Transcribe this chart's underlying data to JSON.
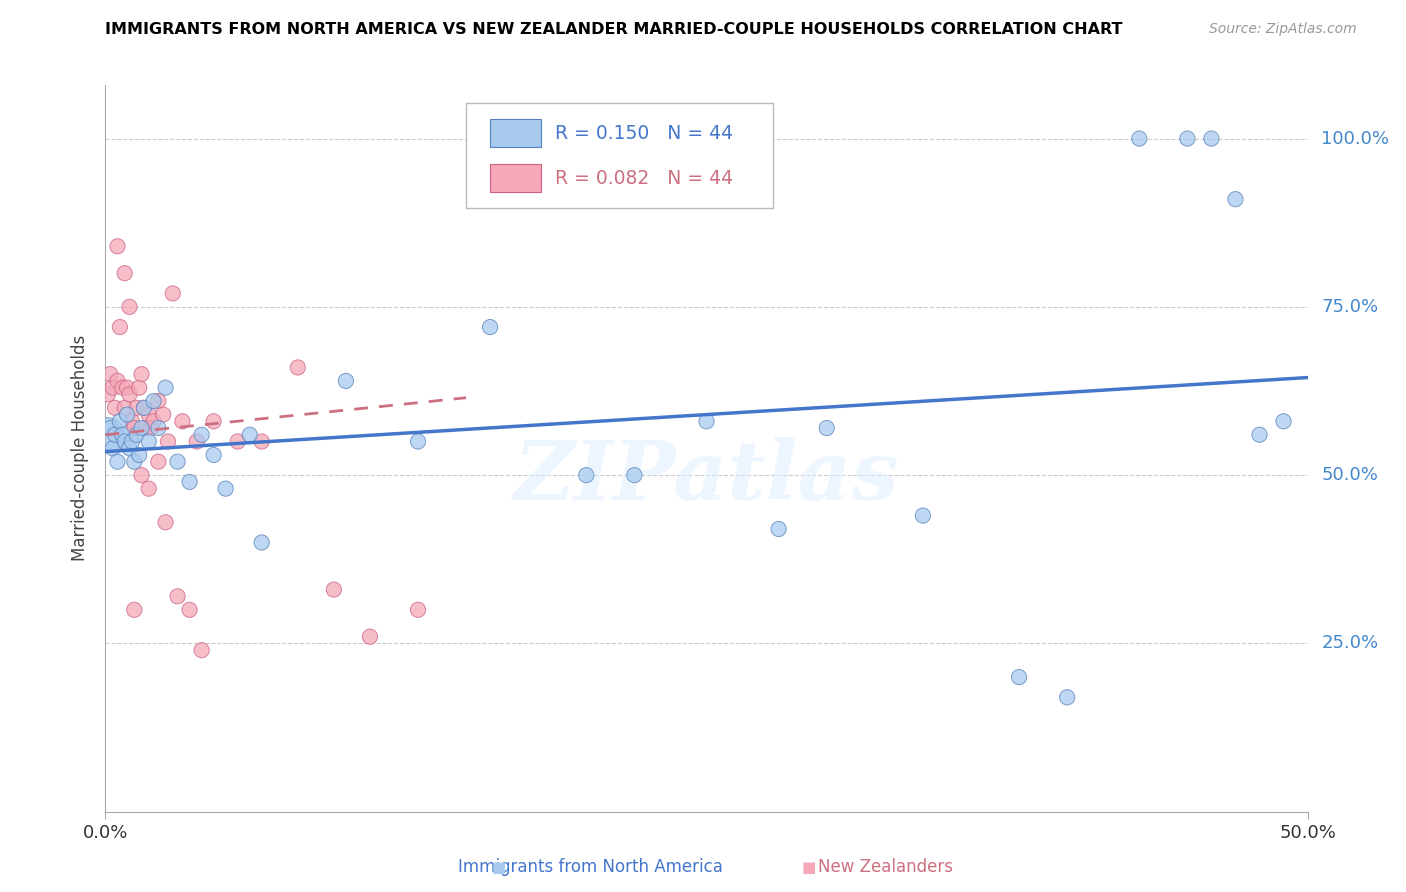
{
  "title": "IMMIGRANTS FROM NORTH AMERICA VS NEW ZEALANDER MARRIED-COUPLE HOUSEHOLDS CORRELATION CHART",
  "source": "Source: ZipAtlas.com",
  "xlabel_blue": "Immigrants from North America",
  "xlabel_pink": "New Zealanders",
  "ylabel": "Married-couple Households",
  "watermark": "ZIPatlas",
  "legend_blue_R": "0.150",
  "legend_blue_N": "44",
  "legend_pink_R": "0.082",
  "legend_pink_N": "44",
  "blue_fill": "#A8CAEE",
  "blue_edge": "#5580BB",
  "pink_fill": "#F4A8B8",
  "pink_edge": "#CC6080",
  "blue_line": "#4477CC",
  "pink_line": "#CC7080",
  "right_label_color": "#4488CC",
  "grid_color": "#cccccc",
  "xlim": [
    0.0,
    0.5
  ],
  "ylim": [
    0.0,
    1.08
  ],
  "ytick_vals": [
    0.25,
    0.5,
    0.75,
    1.0
  ],
  "ytick_labels": [
    "25.0%",
    "50.0%",
    "75.0%",
    "100.0%"
  ],
  "xtick_vals": [
    0.0,
    0.5
  ],
  "xtick_labels": [
    "0.0%",
    "50.0%"
  ],
  "blue_x": [
    0.001,
    0.002,
    0.003,
    0.004,
    0.005,
    0.006,
    0.007,
    0.008,
    0.009,
    0.01,
    0.011,
    0.012,
    0.013,
    0.014,
    0.015,
    0.016,
    0.018,
    0.02,
    0.022,
    0.025,
    0.03,
    0.035,
    0.04,
    0.045,
    0.05,
    0.06,
    0.065,
    0.1,
    0.13,
    0.16,
    0.2,
    0.22,
    0.25,
    0.28,
    0.3,
    0.34,
    0.38,
    0.4,
    0.43,
    0.45,
    0.46,
    0.47,
    0.48,
    0.49
  ],
  "blue_y": [
    0.56,
    0.57,
    0.54,
    0.56,
    0.52,
    0.58,
    0.56,
    0.55,
    0.59,
    0.54,
    0.55,
    0.52,
    0.56,
    0.53,
    0.57,
    0.6,
    0.55,
    0.61,
    0.57,
    0.63,
    0.52,
    0.49,
    0.56,
    0.53,
    0.48,
    0.56,
    0.4,
    0.64,
    0.55,
    0.72,
    0.5,
    0.5,
    0.58,
    0.42,
    0.57,
    0.44,
    0.2,
    0.17,
    1.0,
    1.0,
    1.0,
    0.91,
    0.56,
    0.58
  ],
  "blue_sizes": [
    600,
    120,
    120,
    120,
    120,
    120,
    120,
    120,
    120,
    120,
    120,
    120,
    120,
    120,
    120,
    120,
    120,
    120,
    120,
    120,
    120,
    120,
    120,
    120,
    120,
    120,
    120,
    120,
    120,
    120,
    120,
    120,
    120,
    120,
    120,
    120,
    120,
    120,
    120,
    120,
    120,
    120,
    120,
    120
  ],
  "pink_x": [
    0.001,
    0.002,
    0.003,
    0.004,
    0.005,
    0.006,
    0.007,
    0.008,
    0.009,
    0.01,
    0.011,
    0.012,
    0.013,
    0.014,
    0.015,
    0.016,
    0.017,
    0.018,
    0.019,
    0.02,
    0.022,
    0.024,
    0.026,
    0.028,
    0.032,
    0.038,
    0.045,
    0.055,
    0.065,
    0.08,
    0.095,
    0.11,
    0.13,
    0.015,
    0.018,
    0.022,
    0.025,
    0.03,
    0.035,
    0.04,
    0.005,
    0.008,
    0.01,
    0.012
  ],
  "pink_y": [
    0.62,
    0.65,
    0.63,
    0.6,
    0.64,
    0.72,
    0.63,
    0.6,
    0.63,
    0.62,
    0.58,
    0.57,
    0.6,
    0.63,
    0.65,
    0.6,
    0.57,
    0.59,
    0.57,
    0.58,
    0.61,
    0.59,
    0.55,
    0.77,
    0.58,
    0.55,
    0.58,
    0.55,
    0.55,
    0.66,
    0.33,
    0.26,
    0.3,
    0.5,
    0.48,
    0.52,
    0.43,
    0.32,
    0.3,
    0.24,
    0.84,
    0.8,
    0.75,
    0.3
  ],
  "pink_sizes": [
    120,
    120,
    120,
    120,
    120,
    120,
    120,
    120,
    120,
    120,
    120,
    120,
    120,
    120,
    120,
    120,
    120,
    120,
    120,
    120,
    120,
    120,
    120,
    120,
    120,
    120,
    120,
    120,
    120,
    120,
    120,
    120,
    120,
    120,
    120,
    120,
    120,
    120,
    120,
    120,
    120,
    120,
    120,
    120
  ],
  "blue_trend_x0": 0.0,
  "blue_trend_y0": 0.535,
  "blue_trend_x1": 0.5,
  "blue_trend_y1": 0.645,
  "pink_trend_x0": 0.0,
  "pink_trend_y0": 0.56,
  "pink_trend_x1": 0.15,
  "pink_trend_y1": 0.615
}
